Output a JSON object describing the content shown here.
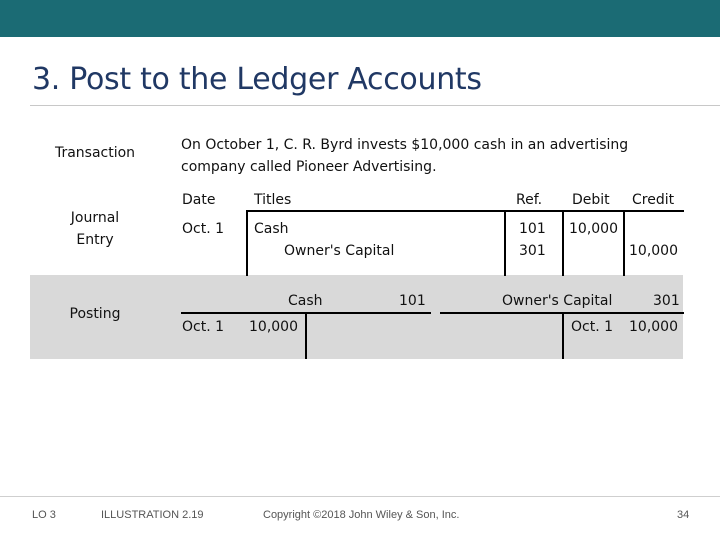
{
  "slide": {
    "title": "3. Post to the Ledger Accounts",
    "labels": {
      "transaction": "Transaction",
      "journal_line1": "Journal",
      "journal_line2": "Entry",
      "posting": "Posting"
    },
    "transaction_text": {
      "line1": "On October 1, C. R. Byrd invests $10,000 cash in an advertising",
      "line2": "company called Pioneer Advertising."
    },
    "journal": {
      "headers": {
        "date": "Date",
        "titles": "Titles",
        "ref": "Ref.",
        "debit": "Debit",
        "credit": "Credit"
      },
      "rows": [
        {
          "date": "Oct. 1",
          "title": "Cash",
          "ref": "101",
          "debit": "10,000",
          "credit": ""
        },
        {
          "date": "",
          "title": "Owner's Capital",
          "ref": "301",
          "debit": "",
          "credit": "10,000"
        }
      ]
    },
    "ledger": {
      "cash": {
        "name": "Cash",
        "number": "101",
        "date": "Oct. 1",
        "amount": "10,000"
      },
      "capital": {
        "name": "Owner's Capital",
        "number": "301",
        "date": "Oct. 1",
        "amount": "10,000"
      }
    },
    "footer": {
      "lo": "LO 3",
      "illustration": "ILLUSTRATION 2.19",
      "copyright": "Copyright ©2018 John Wiley & Son, Inc.",
      "page": "34"
    }
  }
}
